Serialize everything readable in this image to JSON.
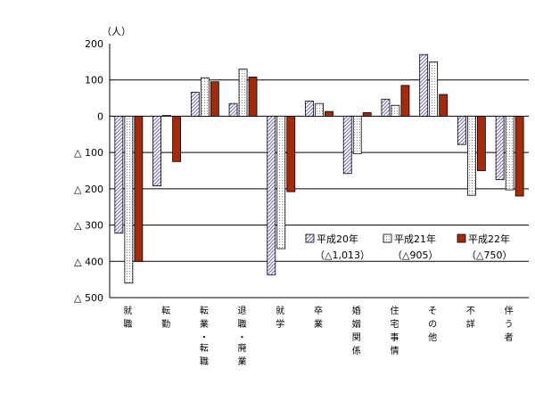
{
  "chart_data": {
    "type": "bar",
    "unit_label": "（人）",
    "ylim": [
      -500,
      200
    ],
    "yticks": [
      {
        "value": 200,
        "label": "200"
      },
      {
        "value": 100,
        "label": "100"
      },
      {
        "value": 0,
        "label": "0"
      },
      {
        "value": -100,
        "label": "△ 100"
      },
      {
        "value": -200,
        "label": "△ 200"
      },
      {
        "value": -300,
        "label": "△ 300"
      },
      {
        "value": -400,
        "label": "△ 400"
      },
      {
        "value": -500,
        "label": "△ 500"
      }
    ],
    "grid": true,
    "categories": [
      "就職",
      "転勤",
      "転業・転職",
      "退職・廃業",
      "就学",
      "卒業",
      "婚姻関係",
      "住宅事情",
      "その他",
      "不詳",
      "伴う者"
    ],
    "series": [
      {
        "name": "平成20年",
        "note": "（△1,013）",
        "pattern": "diag-hatch",
        "color": "#6f6fb0",
        "values": [
          -322,
          -192,
          66,
          35,
          -437,
          42,
          -158,
          47,
          170,
          -78,
          -175
        ]
      },
      {
        "name": "平成21年",
        "note": "（△905）",
        "pattern": "dots",
        "color": "#9a9a9a",
        "values": [
          -460,
          2,
          106,
          130,
          -365,
          35,
          -103,
          30,
          150,
          -218,
          -203
        ]
      },
      {
        "name": "平成22年",
        "note": "（△750）",
        "pattern": "solid",
        "color": "#a52a0a",
        "values": [
          -400,
          -125,
          95,
          108,
          -208,
          13,
          10,
          85,
          60,
          -150,
          -220
        ]
      }
    ],
    "legend_position": "lower-right inside plot"
  }
}
